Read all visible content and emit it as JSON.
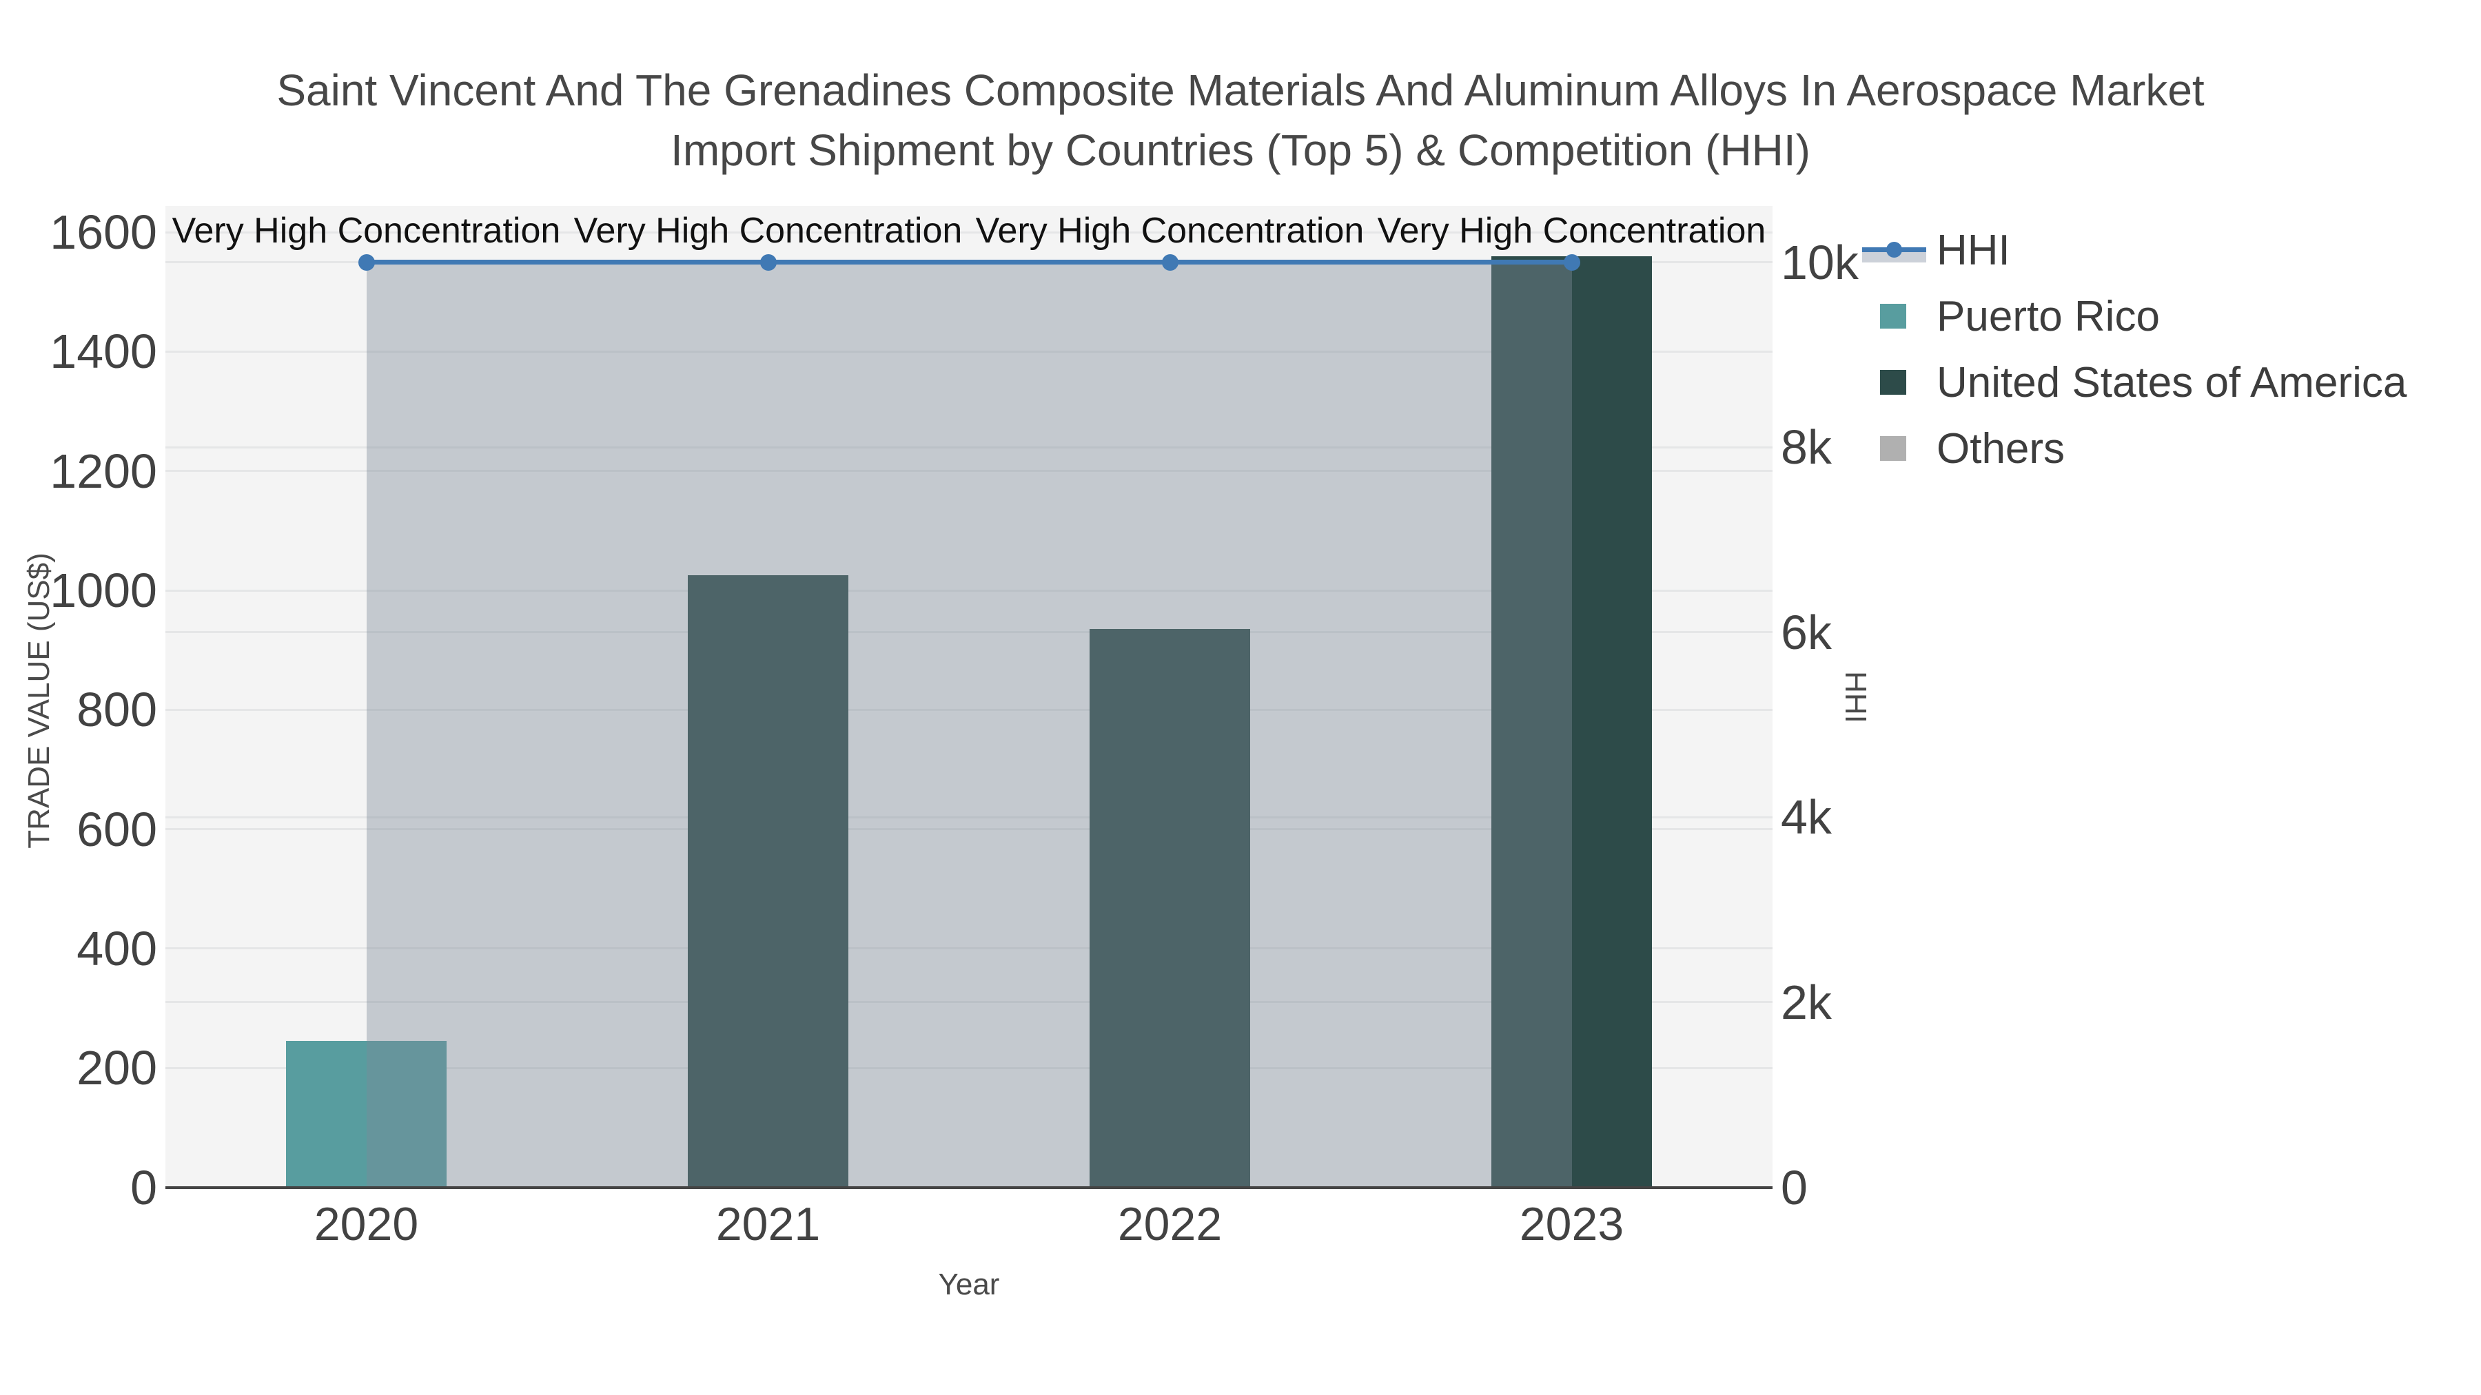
{
  "title": {
    "line1": "Saint Vincent And The Grenadines Composite Materials And Aluminum Alloys In Aerospace Market",
    "line2": "Import Shipment by Countries (Top 5) & Competition (HHI)"
  },
  "chart_data": {
    "type": "combo-bar-line",
    "categories": [
      "2020",
      "2021",
      "2022",
      "2023"
    ],
    "bar_series": [
      {
        "name": "Puerto Rico",
        "color": "#589d9f",
        "values": [
          245,
          0,
          0,
          0
        ]
      },
      {
        "name": "United States of America",
        "color": "#2d4b49",
        "values": [
          0,
          1025,
          935,
          1560
        ]
      },
      {
        "name": "Others",
        "color": "#b0b0b0",
        "values": [
          0,
          0,
          0,
          0
        ]
      }
    ],
    "line_series": {
      "name": "HHI",
      "color": "#4079b4",
      "area_fill_color": "rgba(125,138,152,0.40)",
      "values": [
        10000,
        10000,
        10000,
        10000
      ],
      "axis": "right"
    },
    "annotations": [
      "Very High Concentration",
      "Very High Concentration",
      "Very High Concentration",
      "Very High Concentration"
    ],
    "x_axis": {
      "title": "Year"
    },
    "left_axis": {
      "title": "TRADE VALUE (US$)",
      "tick_values": [
        0,
        200,
        400,
        600,
        800,
        1000,
        1200,
        1400,
        1600
      ],
      "max": 1644
    },
    "right_axis": {
      "title": "HHI",
      "tick_labels": [
        "0",
        "2k",
        "4k",
        "6k",
        "8k",
        "10k"
      ],
      "tick_values": [
        0,
        2000,
        4000,
        6000,
        8000,
        10000
      ],
      "max": 10610
    },
    "legend": [
      {
        "label": "HHI",
        "type": "line",
        "color": "#4079b4"
      },
      {
        "label": "Puerto Rico",
        "type": "bar",
        "color": "#589d9f"
      },
      {
        "label": "United States of America",
        "type": "bar",
        "color": "#2d4b49"
      },
      {
        "label": "Others",
        "type": "bar",
        "color": "#b0b0b0"
      }
    ],
    "layout_hints": {
      "grid": true,
      "legend_position": "right",
      "plot_bg": "#f4f4f4"
    }
  }
}
